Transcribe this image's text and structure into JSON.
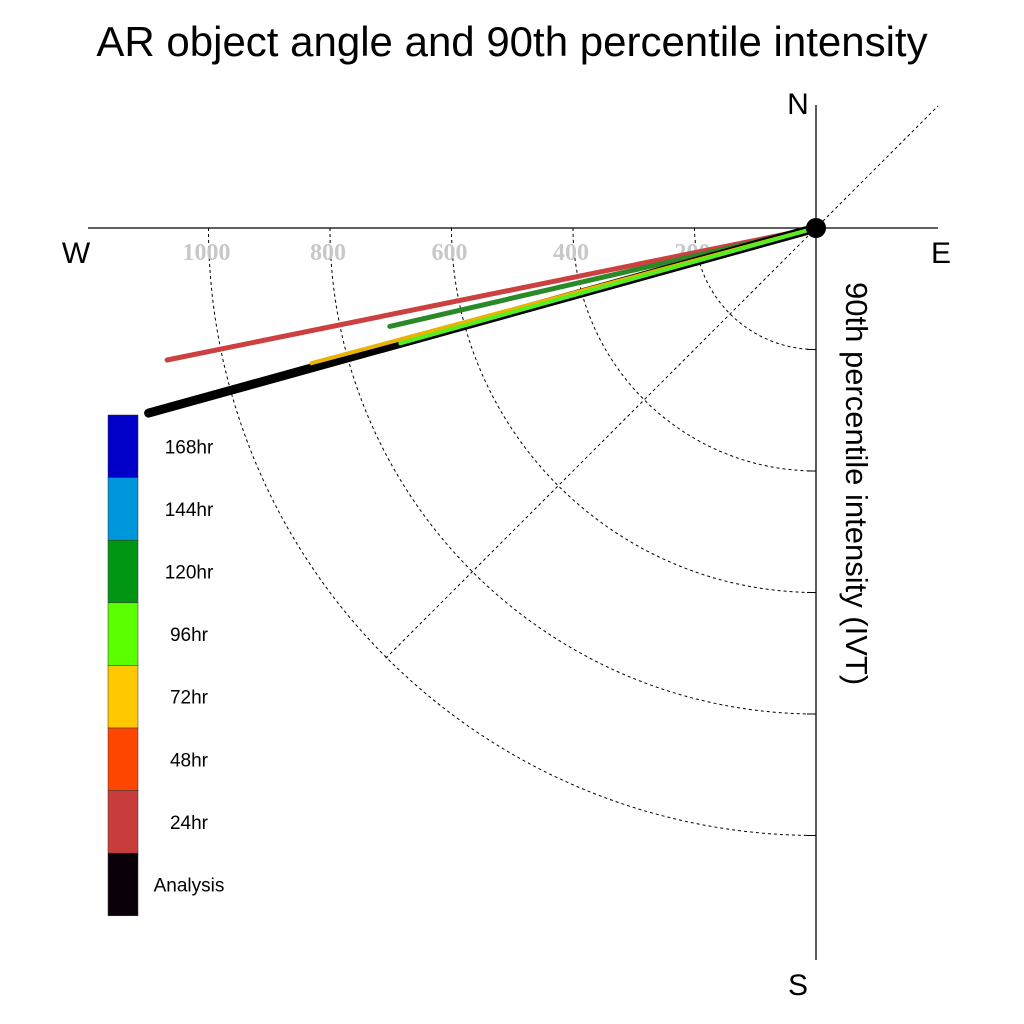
{
  "chart_data": {
    "type": "polar-line",
    "title": "AR object angle and 90th percentile intensity",
    "ylabel": "90th percentile intensity (IVT)",
    "compass": {
      "north": "N",
      "south": "S",
      "east": "E",
      "west": "W"
    },
    "radial_ticks": [
      "200",
      "400",
      "600",
      "800",
      "1000"
    ],
    "radial_tick_values": [
      200,
      400,
      600,
      800,
      1000
    ],
    "radial_range": [
      0,
      1200
    ],
    "grid": true,
    "legend_position": "bottom-left",
    "series": [
      {
        "name": "24hr",
        "color": "#cc4040",
        "angle_deg": 191.5,
        "intensity": 1090,
        "linewidth": 5
      },
      {
        "name": "120hr",
        "color": "#2a8a2a",
        "angle_deg": 193.0,
        "intensity": 720,
        "linewidth": 5
      },
      {
        "name": "Analysis",
        "color": "#000000",
        "angle_deg": 195.5,
        "intensity": 1140,
        "linewidth": 9
      },
      {
        "name": "72hr",
        "color": "#e8b400",
        "angle_deg": 195.0,
        "intensity": 860,
        "linewidth": 4
      },
      {
        "name": "96hr",
        "color": "#55ee22",
        "angle_deg": 195.5,
        "intensity": 710,
        "linewidth": 4
      }
    ],
    "legend": [
      {
        "label": "168hr",
        "color": "#0000c8"
      },
      {
        "label": "144hr",
        "color": "#0096dc"
      },
      {
        "label": "120hr",
        "color": "#009614"
      },
      {
        "label": "96hr",
        "color": "#5aff00"
      },
      {
        "label": "72hr",
        "color": "#ffc800"
      },
      {
        "label": "48hr",
        "color": "#ff4600"
      },
      {
        "label": "24hr",
        "color": "#c83c3c"
      },
      {
        "label": "Analysis",
        "color": "#0a000a"
      }
    ]
  }
}
